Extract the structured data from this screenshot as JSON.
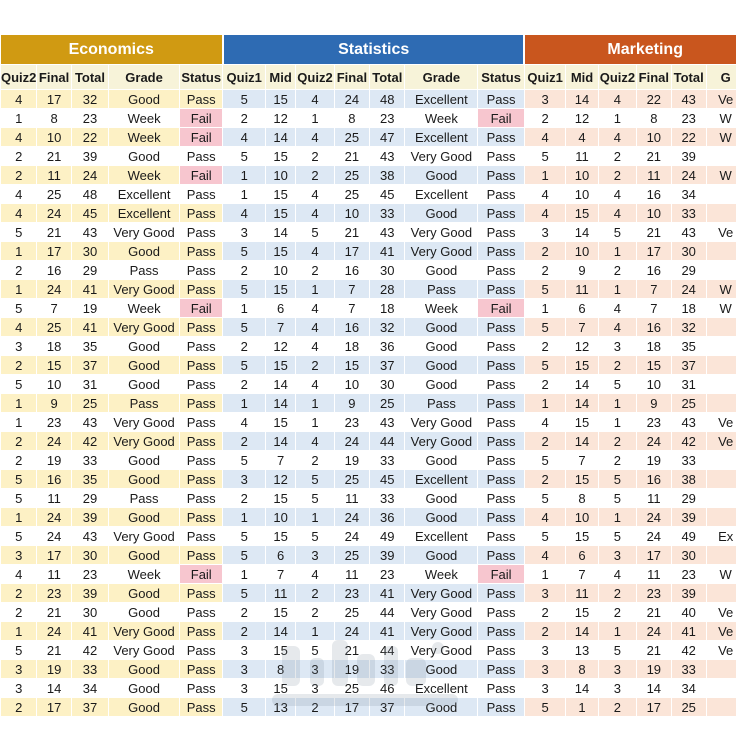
{
  "sections": [
    {
      "name": "Economics",
      "color": "#d09a12"
    },
    {
      "name": "Statistics",
      "color": "#2e6bb3"
    },
    {
      "name": "Marketing",
      "color": "#c9561e"
    }
  ],
  "econ_headers": [
    "Quiz2",
    "Final",
    "Total",
    "Grade",
    "Status"
  ],
  "stat_headers": [
    "Quiz1",
    "Mid",
    "Quiz2",
    "Final",
    "Total",
    "Grade",
    "Status"
  ],
  "mkt_headers": [
    "Quiz1",
    "Mid",
    "Quiz2",
    "Final",
    "Total",
    "G"
  ],
  "colors": {
    "fail_bg": "#f7c6cf",
    "econ_band": "#fdf1c5",
    "stat_band": "#dde8f4",
    "mkt_band": "#fbe5d8"
  },
  "rows": [
    {
      "econ": [
        "4",
        "17",
        "32",
        "Good",
        "Pass"
      ],
      "stat": [
        "5",
        "15",
        "4",
        "24",
        "48",
        "Excellent",
        "Pass"
      ],
      "mkt": [
        "3",
        "14",
        "4",
        "22",
        "43",
        "Ve"
      ]
    },
    {
      "econ": [
        "1",
        "8",
        "23",
        "Week",
        "Fail"
      ],
      "stat": [
        "2",
        "12",
        "1",
        "8",
        "23",
        "Week",
        "Fail"
      ],
      "mkt": [
        "2",
        "12",
        "1",
        "8",
        "23",
        "W"
      ]
    },
    {
      "econ": [
        "4",
        "10",
        "22",
        "Week",
        "Fail"
      ],
      "stat": [
        "4",
        "14",
        "4",
        "25",
        "47",
        "Excellent",
        "Pass"
      ],
      "mkt": [
        "4",
        "4",
        "4",
        "10",
        "22",
        "W"
      ]
    },
    {
      "econ": [
        "2",
        "21",
        "39",
        "Good",
        "Pass"
      ],
      "stat": [
        "5",
        "15",
        "2",
        "21",
        "43",
        "Very Good",
        "Pass"
      ],
      "mkt": [
        "5",
        "11",
        "2",
        "21",
        "39",
        ""
      ]
    },
    {
      "econ": [
        "2",
        "11",
        "24",
        "Week",
        "Fail"
      ],
      "stat": [
        "1",
        "10",
        "2",
        "25",
        "38",
        "Good",
        "Pass"
      ],
      "mkt": [
        "1",
        "10",
        "2",
        "11",
        "24",
        "W"
      ]
    },
    {
      "econ": [
        "4",
        "25",
        "48",
        "Excellent",
        "Pass"
      ],
      "stat": [
        "1",
        "15",
        "4",
        "25",
        "45",
        "Excellent",
        "Pass"
      ],
      "mkt": [
        "4",
        "10",
        "4",
        "16",
        "34",
        ""
      ]
    },
    {
      "econ": [
        "4",
        "24",
        "45",
        "Excellent",
        "Pass"
      ],
      "stat": [
        "4",
        "15",
        "4",
        "10",
        "33",
        "Good",
        "Pass"
      ],
      "mkt": [
        "4",
        "15",
        "4",
        "10",
        "33",
        ""
      ]
    },
    {
      "econ": [
        "5",
        "21",
        "43",
        "Very Good",
        "Pass"
      ],
      "stat": [
        "3",
        "14",
        "5",
        "21",
        "43",
        "Very Good",
        "Pass"
      ],
      "mkt": [
        "3",
        "14",
        "5",
        "21",
        "43",
        "Ve"
      ]
    },
    {
      "econ": [
        "1",
        "17",
        "30",
        "Good",
        "Pass"
      ],
      "stat": [
        "5",
        "15",
        "4",
        "17",
        "41",
        "Very Good",
        "Pass"
      ],
      "mkt": [
        "2",
        "10",
        "1",
        "17",
        "30",
        ""
      ]
    },
    {
      "econ": [
        "2",
        "16",
        "29",
        "Pass",
        "Pass"
      ],
      "stat": [
        "2",
        "10",
        "2",
        "16",
        "30",
        "Good",
        "Pass"
      ],
      "mkt": [
        "2",
        "9",
        "2",
        "16",
        "29",
        ""
      ]
    },
    {
      "econ": [
        "1",
        "24",
        "41",
        "Very Good",
        "Pass"
      ],
      "stat": [
        "5",
        "15",
        "1",
        "7",
        "28",
        "Pass",
        "Pass"
      ],
      "mkt": [
        "5",
        "11",
        "1",
        "7",
        "24",
        "W"
      ]
    },
    {
      "econ": [
        "5",
        "7",
        "19",
        "Week",
        "Fail"
      ],
      "stat": [
        "1",
        "6",
        "4",
        "7",
        "18",
        "Week",
        "Fail"
      ],
      "mkt": [
        "1",
        "6",
        "4",
        "7",
        "18",
        "W"
      ]
    },
    {
      "econ": [
        "4",
        "25",
        "41",
        "Very Good",
        "Pass"
      ],
      "stat": [
        "5",
        "7",
        "4",
        "16",
        "32",
        "Good",
        "Pass"
      ],
      "mkt": [
        "5",
        "7",
        "4",
        "16",
        "32",
        ""
      ]
    },
    {
      "econ": [
        "3",
        "18",
        "35",
        "Good",
        "Pass"
      ],
      "stat": [
        "2",
        "12",
        "4",
        "18",
        "36",
        "Good",
        "Pass"
      ],
      "mkt": [
        "2",
        "12",
        "3",
        "18",
        "35",
        ""
      ]
    },
    {
      "econ": [
        "2",
        "15",
        "37",
        "Good",
        "Pass"
      ],
      "stat": [
        "5",
        "15",
        "2",
        "15",
        "37",
        "Good",
        "Pass"
      ],
      "mkt": [
        "5",
        "15",
        "2",
        "15",
        "37",
        ""
      ]
    },
    {
      "econ": [
        "5",
        "10",
        "31",
        "Good",
        "Pass"
      ],
      "stat": [
        "2",
        "14",
        "4",
        "10",
        "30",
        "Good",
        "Pass"
      ],
      "mkt": [
        "2",
        "14",
        "5",
        "10",
        "31",
        ""
      ]
    },
    {
      "econ": [
        "1",
        "9",
        "25",
        "Pass",
        "Pass"
      ],
      "stat": [
        "1",
        "14",
        "1",
        "9",
        "25",
        "Pass",
        "Pass"
      ],
      "mkt": [
        "1",
        "14",
        "1",
        "9",
        "25",
        ""
      ]
    },
    {
      "econ": [
        "1",
        "23",
        "43",
        "Very Good",
        "Pass"
      ],
      "stat": [
        "4",
        "15",
        "1",
        "23",
        "43",
        "Very Good",
        "Pass"
      ],
      "mkt": [
        "4",
        "15",
        "1",
        "23",
        "43",
        "Ve"
      ]
    },
    {
      "econ": [
        "2",
        "24",
        "42",
        "Very Good",
        "Pass"
      ],
      "stat": [
        "2",
        "14",
        "4",
        "24",
        "44",
        "Very Good",
        "Pass"
      ],
      "mkt": [
        "2",
        "14",
        "2",
        "24",
        "42",
        "Ve"
      ]
    },
    {
      "econ": [
        "2",
        "19",
        "33",
        "Good",
        "Pass"
      ],
      "stat": [
        "5",
        "7",
        "2",
        "19",
        "33",
        "Good",
        "Pass"
      ],
      "mkt": [
        "5",
        "7",
        "2",
        "19",
        "33",
        ""
      ]
    },
    {
      "econ": [
        "5",
        "16",
        "35",
        "Good",
        "Pass"
      ],
      "stat": [
        "3",
        "12",
        "5",
        "25",
        "45",
        "Excellent",
        "Pass"
      ],
      "mkt": [
        "2",
        "15",
        "5",
        "16",
        "38",
        ""
      ]
    },
    {
      "econ": [
        "5",
        "11",
        "29",
        "Pass",
        "Pass"
      ],
      "stat": [
        "2",
        "15",
        "5",
        "11",
        "33",
        "Good",
        "Pass"
      ],
      "mkt": [
        "5",
        "8",
        "5",
        "11",
        "29",
        ""
      ]
    },
    {
      "econ": [
        "1",
        "24",
        "39",
        "Good",
        "Pass"
      ],
      "stat": [
        "1",
        "10",
        "1",
        "24",
        "36",
        "Good",
        "Pass"
      ],
      "mkt": [
        "4",
        "10",
        "1",
        "24",
        "39",
        ""
      ]
    },
    {
      "econ": [
        "5",
        "24",
        "43",
        "Very Good",
        "Pass"
      ],
      "stat": [
        "5",
        "15",
        "5",
        "24",
        "49",
        "Excellent",
        "Pass"
      ],
      "mkt": [
        "5",
        "15",
        "5",
        "24",
        "49",
        "Ex"
      ]
    },
    {
      "econ": [
        "3",
        "17",
        "30",
        "Good",
        "Pass"
      ],
      "stat": [
        "5",
        "6",
        "3",
        "25",
        "39",
        "Good",
        "Pass"
      ],
      "mkt": [
        "4",
        "6",
        "3",
        "17",
        "30",
        ""
      ]
    },
    {
      "econ": [
        "4",
        "11",
        "23",
        "Week",
        "Fail"
      ],
      "stat": [
        "1",
        "7",
        "4",
        "11",
        "23",
        "Week",
        "Fail"
      ],
      "mkt": [
        "1",
        "7",
        "4",
        "11",
        "23",
        "W"
      ]
    },
    {
      "econ": [
        "2",
        "23",
        "39",
        "Good",
        "Pass"
      ],
      "stat": [
        "5",
        "11",
        "2",
        "23",
        "41",
        "Very Good",
        "Pass"
      ],
      "mkt": [
        "3",
        "11",
        "2",
        "23",
        "39",
        ""
      ]
    },
    {
      "econ": [
        "2",
        "21",
        "30",
        "Good",
        "Pass"
      ],
      "stat": [
        "2",
        "15",
        "2",
        "25",
        "44",
        "Very Good",
        "Pass"
      ],
      "mkt": [
        "2",
        "15",
        "2",
        "21",
        "40",
        "Ve"
      ]
    },
    {
      "econ": [
        "1",
        "24",
        "41",
        "Very Good",
        "Pass"
      ],
      "stat": [
        "2",
        "14",
        "1",
        "24",
        "41",
        "Very Good",
        "Pass"
      ],
      "mkt": [
        "2",
        "14",
        "1",
        "24",
        "41",
        "Ve"
      ]
    },
    {
      "econ": [
        "5",
        "21",
        "42",
        "Very Good",
        "Pass"
      ],
      "stat": [
        "3",
        "15",
        "5",
        "21",
        "44",
        "Very Good",
        "Pass"
      ],
      "mkt": [
        "3",
        "13",
        "5",
        "21",
        "42",
        "Ve"
      ]
    },
    {
      "econ": [
        "3",
        "19",
        "33",
        "Good",
        "Pass"
      ],
      "stat": [
        "3",
        "8",
        "3",
        "19",
        "33",
        "Good",
        "Pass"
      ],
      "mkt": [
        "3",
        "8",
        "3",
        "19",
        "33",
        ""
      ]
    },
    {
      "econ": [
        "3",
        "14",
        "34",
        "Good",
        "Pass"
      ],
      "stat": [
        "3",
        "15",
        "3",
        "25",
        "46",
        "Excellent",
        "Pass"
      ],
      "mkt": [
        "3",
        "14",
        "3",
        "14",
        "34",
        ""
      ]
    },
    {
      "econ": [
        "2",
        "17",
        "37",
        "Good",
        "Pass"
      ],
      "stat": [
        "5",
        "13",
        "2",
        "17",
        "37",
        "Good",
        "Pass"
      ],
      "mkt": [
        "5",
        "1",
        "2",
        "17",
        "25",
        ""
      ]
    }
  ]
}
